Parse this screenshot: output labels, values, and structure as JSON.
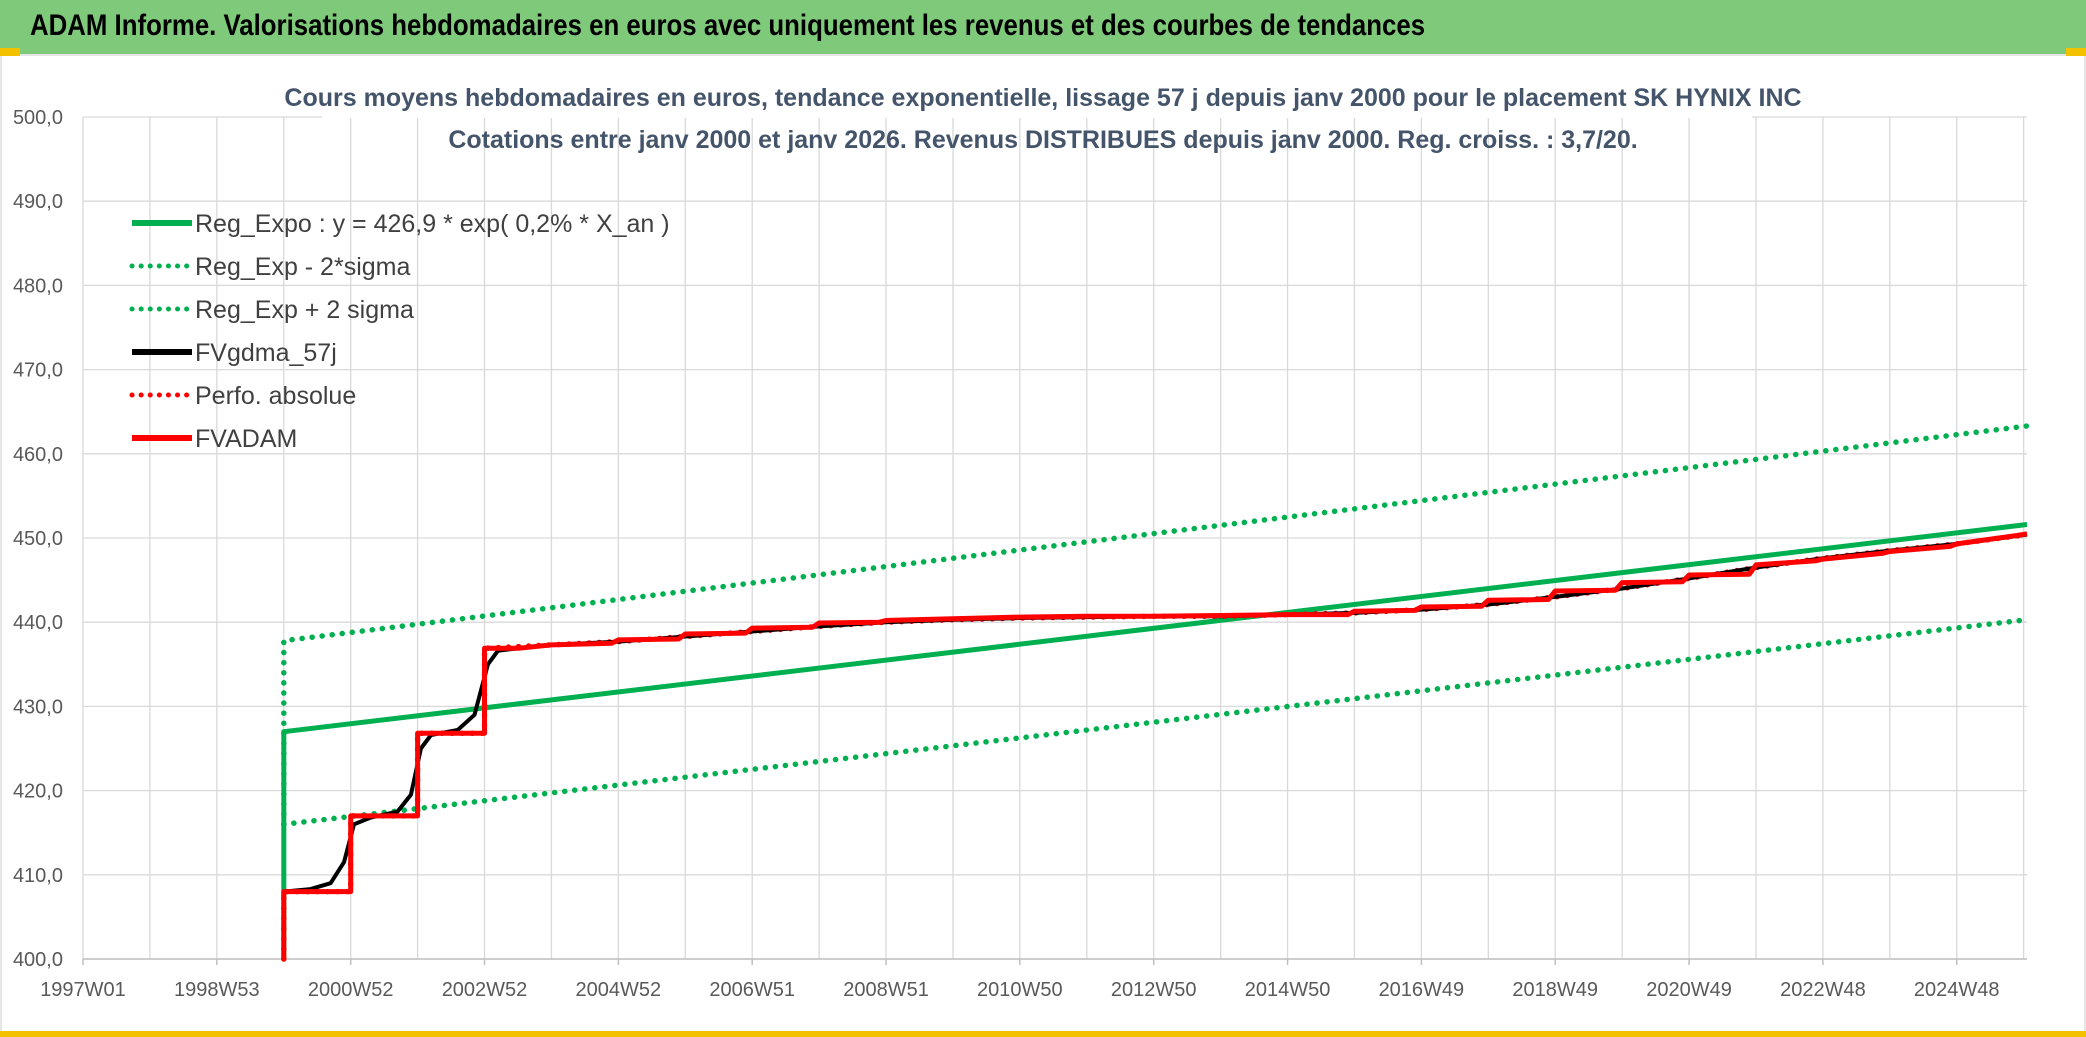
{
  "banner": {
    "title": "ADAM Informe. Valorisations hebdomadaires en euros avec uniquement les revenus et des courbes de tendances"
  },
  "colors": {
    "banner_bg": "#7fc97a",
    "accent_yellow": "#f2c200",
    "title_text": "#44546a",
    "reg_green": "#00b050",
    "fv_black": "#000000",
    "adam_red": "#ff0000"
  },
  "chart_data": {
    "type": "line",
    "title": "Cours moyens hebdomadaires en euros, tendance exponentielle, lissage 57 j depuis janv 2000 pour le placement SK HYNIX INC",
    "subtitle": "Cotations entre janv 2000 et janv 2026. Revenus DISTRIBUES depuis janv 2000. Reg. croiss. : 3,7/20.",
    "xlabel": "",
    "ylabel": "",
    "x_ticks": [
      "1997W01",
      "1998W53",
      "2000W52",
      "2002W52",
      "2004W52",
      "2006W51",
      "2008W51",
      "2010W50",
      "2012W50",
      "2014W50",
      "2016W49",
      "2018W49",
      "2020W49",
      "2022W48",
      "2024W48"
    ],
    "x_range": [
      1997.0,
      2026.05
    ],
    "y_ticks": [
      "400,0",
      "410,0",
      "420,0",
      "430,0",
      "440,0",
      "450,0",
      "460,0",
      "470,0",
      "480,0",
      "490,0",
      "500,0"
    ],
    "ylim": [
      400,
      500
    ],
    "grid": true,
    "legend_position": "top-left",
    "series": [
      {
        "name": "Reg_Expo : y = 426,9 * exp( 0,2% *  X_an )",
        "style": "solid",
        "color": "#00b050",
        "points": [
          [
            2000.0,
            400.0
          ],
          [
            2000.0,
            427.0
          ],
          [
            2026.05,
            451.6
          ]
        ]
      },
      {
        "name": "Reg_Exp - 2*sigma",
        "style": "dotted",
        "color": "#00b050",
        "points": [
          [
            2000.0,
            416.0
          ],
          [
            2026.05,
            440.3
          ]
        ]
      },
      {
        "name": "Reg_Exp + 2 sigma",
        "style": "dotted",
        "color": "#00b050",
        "points": [
          [
            2000.0,
            416.0
          ],
          [
            2000.0,
            437.8
          ],
          [
            2026.05,
            463.3
          ]
        ]
      },
      {
        "name": "FVgdma_57j",
        "style": "solid",
        "color": "#000000",
        "points": [
          [
            2000.0,
            408.0
          ],
          [
            2000.4,
            408.3
          ],
          [
            2000.7,
            409.0
          ],
          [
            2000.9,
            411.5
          ],
          [
            2001.05,
            416.0
          ],
          [
            2001.3,
            416.8
          ],
          [
            2001.7,
            417.5
          ],
          [
            2001.9,
            419.5
          ],
          [
            2002.05,
            425.0
          ],
          [
            2002.2,
            426.6
          ],
          [
            2002.6,
            427.2
          ],
          [
            2002.85,
            429.0
          ],
          [
            2003.05,
            435.0
          ],
          [
            2003.2,
            436.6
          ],
          [
            2003.5,
            436.9
          ],
          [
            2004.0,
            437.3
          ],
          [
            2005.0,
            437.7
          ],
          [
            2006.0,
            438.3
          ],
          [
            2007.0,
            438.9
          ],
          [
            2008.0,
            439.5
          ],
          [
            2009.0,
            440.0
          ],
          [
            2010.0,
            440.3
          ],
          [
            2011.0,
            440.5
          ],
          [
            2012.0,
            440.6
          ],
          [
            2013.0,
            440.7
          ],
          [
            2014.0,
            440.7
          ],
          [
            2015.0,
            440.9
          ],
          [
            2016.0,
            441.1
          ],
          [
            2017.0,
            441.5
          ],
          [
            2018.0,
            442.1
          ],
          [
            2019.0,
            443.0
          ],
          [
            2020.0,
            444.0
          ],
          [
            2021.0,
            445.2
          ],
          [
            2022.0,
            446.5
          ],
          [
            2023.0,
            447.6
          ],
          [
            2024.0,
            448.5
          ],
          [
            2025.0,
            449.3
          ],
          [
            2026.05,
            450.4
          ]
        ]
      },
      {
        "name": "Perfo. absolue",
        "style": "dotted",
        "color": "#ff0000",
        "points": [
          [
            2000.0,
            400.0
          ],
          [
            2000.0,
            408.0
          ],
          [
            2001.0,
            408.0
          ],
          [
            2001.0,
            417.0
          ],
          [
            2002.0,
            417.0
          ],
          [
            2002.0,
            426.8
          ],
          [
            2003.0,
            426.8
          ],
          [
            2003.0,
            436.9
          ],
          [
            2004.0,
            437.3
          ],
          [
            2005.0,
            437.7
          ],
          [
            2006.0,
            438.3
          ],
          [
            2007.0,
            438.9
          ],
          [
            2008.0,
            439.5
          ],
          [
            2009.0,
            440.0
          ],
          [
            2010.0,
            440.3
          ],
          [
            2011.0,
            440.5
          ],
          [
            2012.0,
            440.6
          ],
          [
            2013.0,
            440.7
          ],
          [
            2014.0,
            440.7
          ],
          [
            2015.0,
            440.9
          ],
          [
            2016.0,
            441.1
          ],
          [
            2017.0,
            441.5
          ],
          [
            2018.0,
            442.1
          ],
          [
            2019.0,
            443.0
          ],
          [
            2020.0,
            444.0
          ],
          [
            2021.0,
            445.2
          ],
          [
            2022.0,
            446.5
          ],
          [
            2023.0,
            447.6
          ],
          [
            2024.0,
            448.5
          ],
          [
            2025.0,
            449.3
          ],
          [
            2026.05,
            450.4
          ]
        ]
      },
      {
        "name": "FVADAM",
        "style": "solid",
        "color": "#ff0000",
        "points": [
          [
            2000.0,
            400.0
          ],
          [
            2000.0,
            408.0
          ],
          [
            2001.0,
            408.0
          ],
          [
            2001.0,
            417.0
          ],
          [
            2002.0,
            417.0
          ],
          [
            2002.0,
            426.8
          ],
          [
            2003.0,
            426.8
          ],
          [
            2003.0,
            436.9
          ],
          [
            2003.5,
            436.9
          ],
          [
            2004.0,
            437.3
          ],
          [
            2004.9,
            437.5
          ],
          [
            2005.0,
            437.9
          ],
          [
            2005.9,
            438.0
          ],
          [
            2006.0,
            438.6
          ],
          [
            2006.9,
            438.7
          ],
          [
            2007.0,
            439.3
          ],
          [
            2007.9,
            439.4
          ],
          [
            2008.0,
            439.9
          ],
          [
            2008.9,
            440.0
          ],
          [
            2009.0,
            440.2
          ],
          [
            2010.0,
            440.4
          ],
          [
            2011.0,
            440.6
          ],
          [
            2012.0,
            440.7
          ],
          [
            2013.0,
            440.7
          ],
          [
            2014.0,
            440.8
          ],
          [
            2015.0,
            440.9
          ],
          [
            2015.9,
            440.9
          ],
          [
            2016.0,
            441.3
          ],
          [
            2016.9,
            441.4
          ],
          [
            2017.0,
            441.8
          ],
          [
            2017.9,
            441.9
          ],
          [
            2018.0,
            442.6
          ],
          [
            2018.9,
            442.7
          ],
          [
            2019.0,
            443.7
          ],
          [
            2019.9,
            443.8
          ],
          [
            2020.0,
            444.7
          ],
          [
            2020.9,
            444.8
          ],
          [
            2021.0,
            445.6
          ],
          [
            2021.9,
            445.7
          ],
          [
            2022.0,
            446.8
          ],
          [
            2022.9,
            447.3
          ],
          [
            2023.0,
            447.5
          ],
          [
            2023.9,
            448.2
          ],
          [
            2024.0,
            448.4
          ],
          [
            2024.9,
            449.0
          ],
          [
            2025.0,
            449.3
          ],
          [
            2025.9,
            450.3
          ],
          [
            2026.05,
            450.5
          ]
        ]
      }
    ]
  }
}
